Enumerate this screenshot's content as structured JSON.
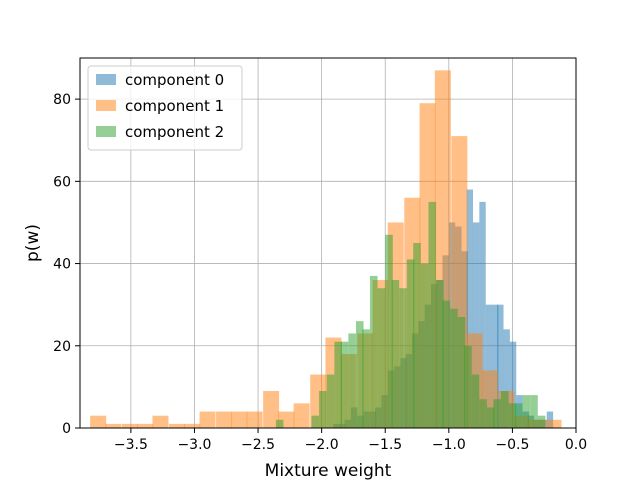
{
  "chart_data": {
    "type": "bar",
    "chart_kind": "histogram",
    "title": "",
    "xlabel": "Mixture weight",
    "ylabel": "p(w)",
    "xlim": [
      -3.9,
      0.0
    ],
    "ylim": [
      0,
      90
    ],
    "xticks": [
      -3.5,
      -3.0,
      -2.5,
      -2.0,
      -1.5,
      -1.0,
      -0.5,
      0.0
    ],
    "xtick_labels": [
      "−3.5",
      "−3.0",
      "−2.5",
      "−2.0",
      "−1.5",
      "−1.0",
      "−0.5",
      "0.0"
    ],
    "yticks": [
      0,
      20,
      40,
      60,
      80
    ],
    "ytick_labels": [
      "0",
      "20",
      "40",
      "60",
      "80"
    ],
    "grid": true,
    "legend_position": "top-left",
    "series": [
      {
        "name": "component 0",
        "color": "#1f77b4",
        "alpha": 0.5,
        "bin_width": 0.0478,
        "bins": [
          [
            -1.91,
            1
          ],
          [
            -1.86,
            1
          ],
          [
            -1.82,
            2
          ],
          [
            -1.77,
            5
          ],
          [
            -1.72,
            3
          ],
          [
            -1.67,
            4
          ],
          [
            -1.62,
            4
          ],
          [
            -1.58,
            5
          ],
          [
            -1.53,
            8
          ],
          [
            -1.48,
            14
          ],
          [
            -1.43,
            15
          ],
          [
            -1.38,
            17
          ],
          [
            -1.34,
            18
          ],
          [
            -1.29,
            23
          ],
          [
            -1.24,
            26
          ],
          [
            -1.19,
            30
          ],
          [
            -1.14,
            35
          ],
          [
            -1.1,
            36
          ],
          [
            -1.05,
            42
          ],
          [
            -1.0,
            50
          ],
          [
            -0.95,
            49
          ],
          [
            -0.9,
            43
          ],
          [
            -0.86,
            58
          ],
          [
            -0.81,
            50
          ],
          [
            -0.76,
            55
          ],
          [
            -0.71,
            30
          ],
          [
            -0.66,
            30
          ],
          [
            -0.62,
            30
          ],
          [
            -0.57,
            24
          ],
          [
            -0.52,
            21
          ],
          [
            -0.47,
            8
          ],
          [
            -0.42,
            4
          ],
          [
            -0.38,
            3
          ],
          [
            -0.33,
            2
          ],
          [
            -0.28,
            2
          ],
          [
            -0.23,
            4
          ]
        ]
      },
      {
        "name": "component 1",
        "color": "#ff7f0e",
        "alpha": 0.5,
        "bin_width": 0.1233,
        "bins": [
          [
            -3.82,
            3
          ],
          [
            -3.7,
            1
          ],
          [
            -3.57,
            1
          ],
          [
            -3.45,
            1
          ],
          [
            -3.33,
            3
          ],
          [
            -3.2,
            1
          ],
          [
            -3.08,
            1
          ],
          [
            -2.96,
            4
          ],
          [
            -2.83,
            4
          ],
          [
            -2.71,
            4
          ],
          [
            -2.59,
            4
          ],
          [
            -2.46,
            9
          ],
          [
            -2.34,
            4
          ],
          [
            -2.22,
            6
          ],
          [
            -2.09,
            13
          ],
          [
            -1.97,
            22
          ],
          [
            -1.85,
            18
          ],
          [
            -1.72,
            23
          ],
          [
            -1.6,
            36
          ],
          [
            -1.48,
            50
          ],
          [
            -1.35,
            56
          ],
          [
            -1.23,
            79
          ],
          [
            -1.11,
            87
          ],
          [
            -0.98,
            71
          ],
          [
            -0.86,
            23
          ],
          [
            -0.74,
            14
          ],
          [
            -0.61,
            9
          ],
          [
            -0.49,
            3
          ],
          [
            -0.37,
            2
          ],
          [
            -0.24,
            2
          ]
        ]
      },
      {
        "name": "component 2",
        "color": "#2ca02c",
        "alpha": 0.5,
        "bin_width": 0.0572,
        "bins": [
          [
            -2.36,
            2
          ],
          [
            -2.08,
            3
          ],
          [
            -2.02,
            9
          ],
          [
            -1.96,
            13
          ],
          [
            -1.9,
            21
          ],
          [
            -1.85,
            21
          ],
          [
            -1.79,
            23
          ],
          [
            -1.73,
            26
          ],
          [
            -1.68,
            24
          ],
          [
            -1.62,
            37
          ],
          [
            -1.56,
            34
          ],
          [
            -1.5,
            47
          ],
          [
            -1.45,
            36
          ],
          [
            -1.39,
            34
          ],
          [
            -1.33,
            41
          ],
          [
            -1.28,
            45
          ],
          [
            -1.22,
            40
          ],
          [
            -1.16,
            55
          ],
          [
            -1.1,
            36
          ],
          [
            -1.05,
            31
          ],
          [
            -0.99,
            29
          ],
          [
            -0.93,
            27
          ],
          [
            -0.88,
            20
          ],
          [
            -0.82,
            13
          ],
          [
            -0.76,
            7
          ],
          [
            -0.7,
            5
          ],
          [
            -0.65,
            7
          ],
          [
            -0.59,
            9
          ],
          [
            -0.53,
            6
          ],
          [
            -0.48,
            6
          ],
          [
            -0.42,
            8
          ],
          [
            -0.36,
            8
          ],
          [
            -0.3,
            3
          ]
        ]
      }
    ]
  }
}
